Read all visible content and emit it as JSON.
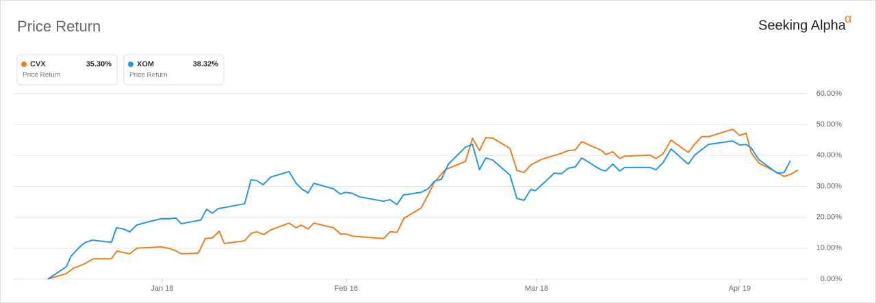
{
  "chart_data": {
    "type": "line",
    "title": "Price Return",
    "brand": "Seeking Alpha",
    "brand_mark": "α",
    "xlim": [
      -5.4,
      119.7
    ],
    "xticks": [
      {
        "value": 18,
        "label": "Jan 18"
      },
      {
        "value": 47,
        "label": "Feb 16"
      },
      {
        "value": 77,
        "label": "Mar 18"
      },
      {
        "value": 109,
        "label": "Apr 19"
      }
    ],
    "ylim": [
      0,
      60
    ],
    "yticks": [
      {
        "value": 0,
        "label": "0.00%"
      },
      {
        "value": 10,
        "label": "10.00%"
      },
      {
        "value": 20,
        "label": "20.00%"
      },
      {
        "value": 30,
        "label": "30.00%"
      },
      {
        "value": 40,
        "label": "40.00%"
      },
      {
        "value": 50,
        "label": "50.00%"
      },
      {
        "value": 60,
        "label": "60.00%"
      }
    ],
    "grid": true,
    "series": [
      {
        "name": "CVX",
        "color": "#f07c1b",
        "legend_value": {
          "value": 35.3,
          "label": "35.30%"
        },
        "legend_subtitle": "Price Return",
        "x": [
          0,
          2.9,
          4.0,
          4.9,
          5.9,
          7.2,
          10.0,
          10.9,
          11.9,
          12.9,
          14.0,
          17.8,
          18.9,
          20.0,
          21.0,
          23.7,
          24.8,
          25.9,
          27.0,
          27.8,
          31.0,
          32.0,
          32.9,
          34.0,
          35.1,
          38.0,
          39.1,
          39.9,
          41.0,
          41.9,
          45.0,
          46.1,
          46.9,
          48.0,
          52.9,
          53.9,
          55.0,
          56.1,
          58.8,
          59.9,
          60.9,
          62.6,
          65.8,
          66.9,
          68.0,
          69.0,
          70.1,
          72.8,
          73.9,
          75.0,
          76.1,
          77.7,
          80.9,
          82.0,
          83.1,
          84.1,
          86.5,
          87.4,
          87.9,
          89.0,
          90.1,
          90.9,
          94.9,
          95.8,
          96.9,
          98.2,
          100.9,
          101.9,
          103.0,
          104.1,
          107.9,
          109.0,
          110.0,
          110.8,
          112.0,
          114.9,
          116.0,
          117.0,
          118.2
        ],
        "values": [
          0,
          1.8,
          3.5,
          4.2,
          5.1,
          6.6,
          6.6,
          9.1,
          8.6,
          8.2,
          10.0,
          10.4,
          10.0,
          9.3,
          8.2,
          8.4,
          13.1,
          13.3,
          15.5,
          11.5,
          12.4,
          14.8,
          15.3,
          14.4,
          15.9,
          18.1,
          16.6,
          17.5,
          16.2,
          18.1,
          16.6,
          14.6,
          14.6,
          13.9,
          13.1,
          15.3,
          15.1,
          19.7,
          23.0,
          27.2,
          31.4,
          35.4,
          38.1,
          45.6,
          41.6,
          45.8,
          45.6,
          42.3,
          35.2,
          34.5,
          36.9,
          38.7,
          40.7,
          41.6,
          41.8,
          44.5,
          42.3,
          41.4,
          40.3,
          41.2,
          39.0,
          39.8,
          40.1,
          39.0,
          40.5,
          45.0,
          41.0,
          43.6,
          46.1,
          46.1,
          48.5,
          46.5,
          47.2,
          41.0,
          37.6,
          34.5,
          33.2,
          33.9,
          35.3
        ]
      },
      {
        "name": "XOM",
        "color": "#2196e8",
        "legend_value": {
          "value": 38.32,
          "label": "38.32%"
        },
        "legend_subtitle": "Price Return",
        "x": [
          0,
          2.9,
          3.6,
          4.3,
          5.1,
          5.9,
          7.0,
          10.0,
          10.8,
          11.9,
          12.9,
          14.0,
          15.6,
          17.8,
          18.9,
          20.2,
          21.0,
          22.7,
          24.1,
          25.0,
          25.9,
          26.8,
          28.0,
          31.0,
          32.0,
          32.9,
          33.9,
          35.1,
          38.0,
          39.1,
          40.1,
          41.0,
          41.9,
          45.0,
          46.1,
          46.9,
          48.0,
          49.1,
          52.9,
          53.9,
          55.0,
          56.0,
          58.8,
          59.9,
          60.9,
          62.0,
          63.1,
          65.8,
          66.9,
          68.0,
          69.0,
          70.1,
          72.8,
          73.9,
          75.0,
          76.1,
          76.8,
          77.7,
          79.8,
          80.9,
          82.0,
          83.1,
          84.1,
          85.4,
          86.5,
          87.4,
          87.9,
          89.0,
          90.1,
          90.9,
          94.9,
          95.8,
          96.9,
          98.2,
          100.9,
          101.9,
          104.1,
          107.9,
          109.0,
          110.0,
          110.8,
          112.0,
          114.9,
          116.0,
          117.0
        ],
        "values": [
          0,
          4.0,
          7.3,
          8.9,
          10.6,
          11.9,
          12.6,
          11.9,
          16.6,
          16.2,
          15.3,
          17.5,
          18.4,
          19.5,
          19.5,
          19.7,
          17.9,
          18.6,
          19.1,
          22.6,
          21.3,
          22.8,
          23.2,
          24.4,
          32.1,
          31.9,
          30.5,
          33.0,
          34.8,
          31.0,
          29.0,
          27.9,
          31.0,
          29.2,
          27.5,
          28.1,
          27.7,
          26.6,
          25.2,
          25.7,
          24.1,
          27.2,
          28.1,
          29.2,
          31.7,
          32.3,
          37.2,
          42.7,
          43.6,
          35.4,
          39.2,
          38.5,
          33.7,
          26.1,
          25.5,
          29.0,
          28.6,
          30.3,
          34.3,
          34.1,
          35.9,
          36.3,
          39.2,
          37.6,
          36.1,
          35.2,
          35.0,
          37.2,
          35.0,
          36.1,
          36.1,
          35.4,
          37.6,
          42.1,
          37.2,
          40.1,
          43.6,
          44.7,
          43.4,
          43.6,
          42.5,
          38.7,
          34.3,
          34.5,
          38.32
        ]
      }
    ]
  }
}
